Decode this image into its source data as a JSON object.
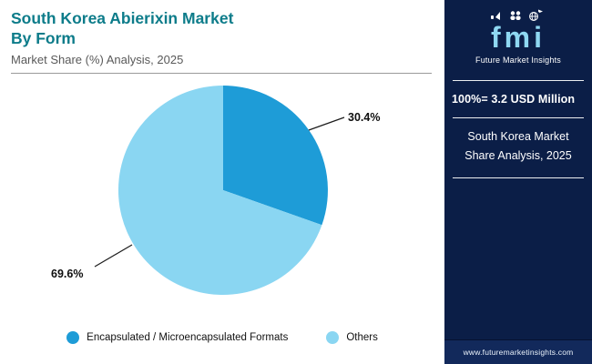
{
  "header": {
    "title_line1": "South Korea Abierixin Market",
    "title_line2": "By Form",
    "subtitle": "Market Share (%) Analysis, 2025"
  },
  "chart_data": {
    "type": "pie",
    "title": "South Korea Abierixin Market By Form",
    "subtitle": "Market Share (%) Analysis, 2025",
    "labels": [
      "Encapsulated / Microencapsulated Formats",
      "Others"
    ],
    "values": [
      30.4,
      69.6
    ],
    "value_labels": [
      "30.4%",
      "69.6%"
    ],
    "colors": [
      "#1E9CD7",
      "#8AD6F2"
    ],
    "start_angle": -90,
    "legend_position": "bottom",
    "total_note": "100%= 3.2 USD Million"
  },
  "sidebar": {
    "logo_word": "fmi",
    "brand": "Future Market Insights",
    "stat": "100%= 3.2 USD Million",
    "caption": "South Korea Market Share Analysis, 2025",
    "website": "www.futuremarketinsights.com"
  }
}
